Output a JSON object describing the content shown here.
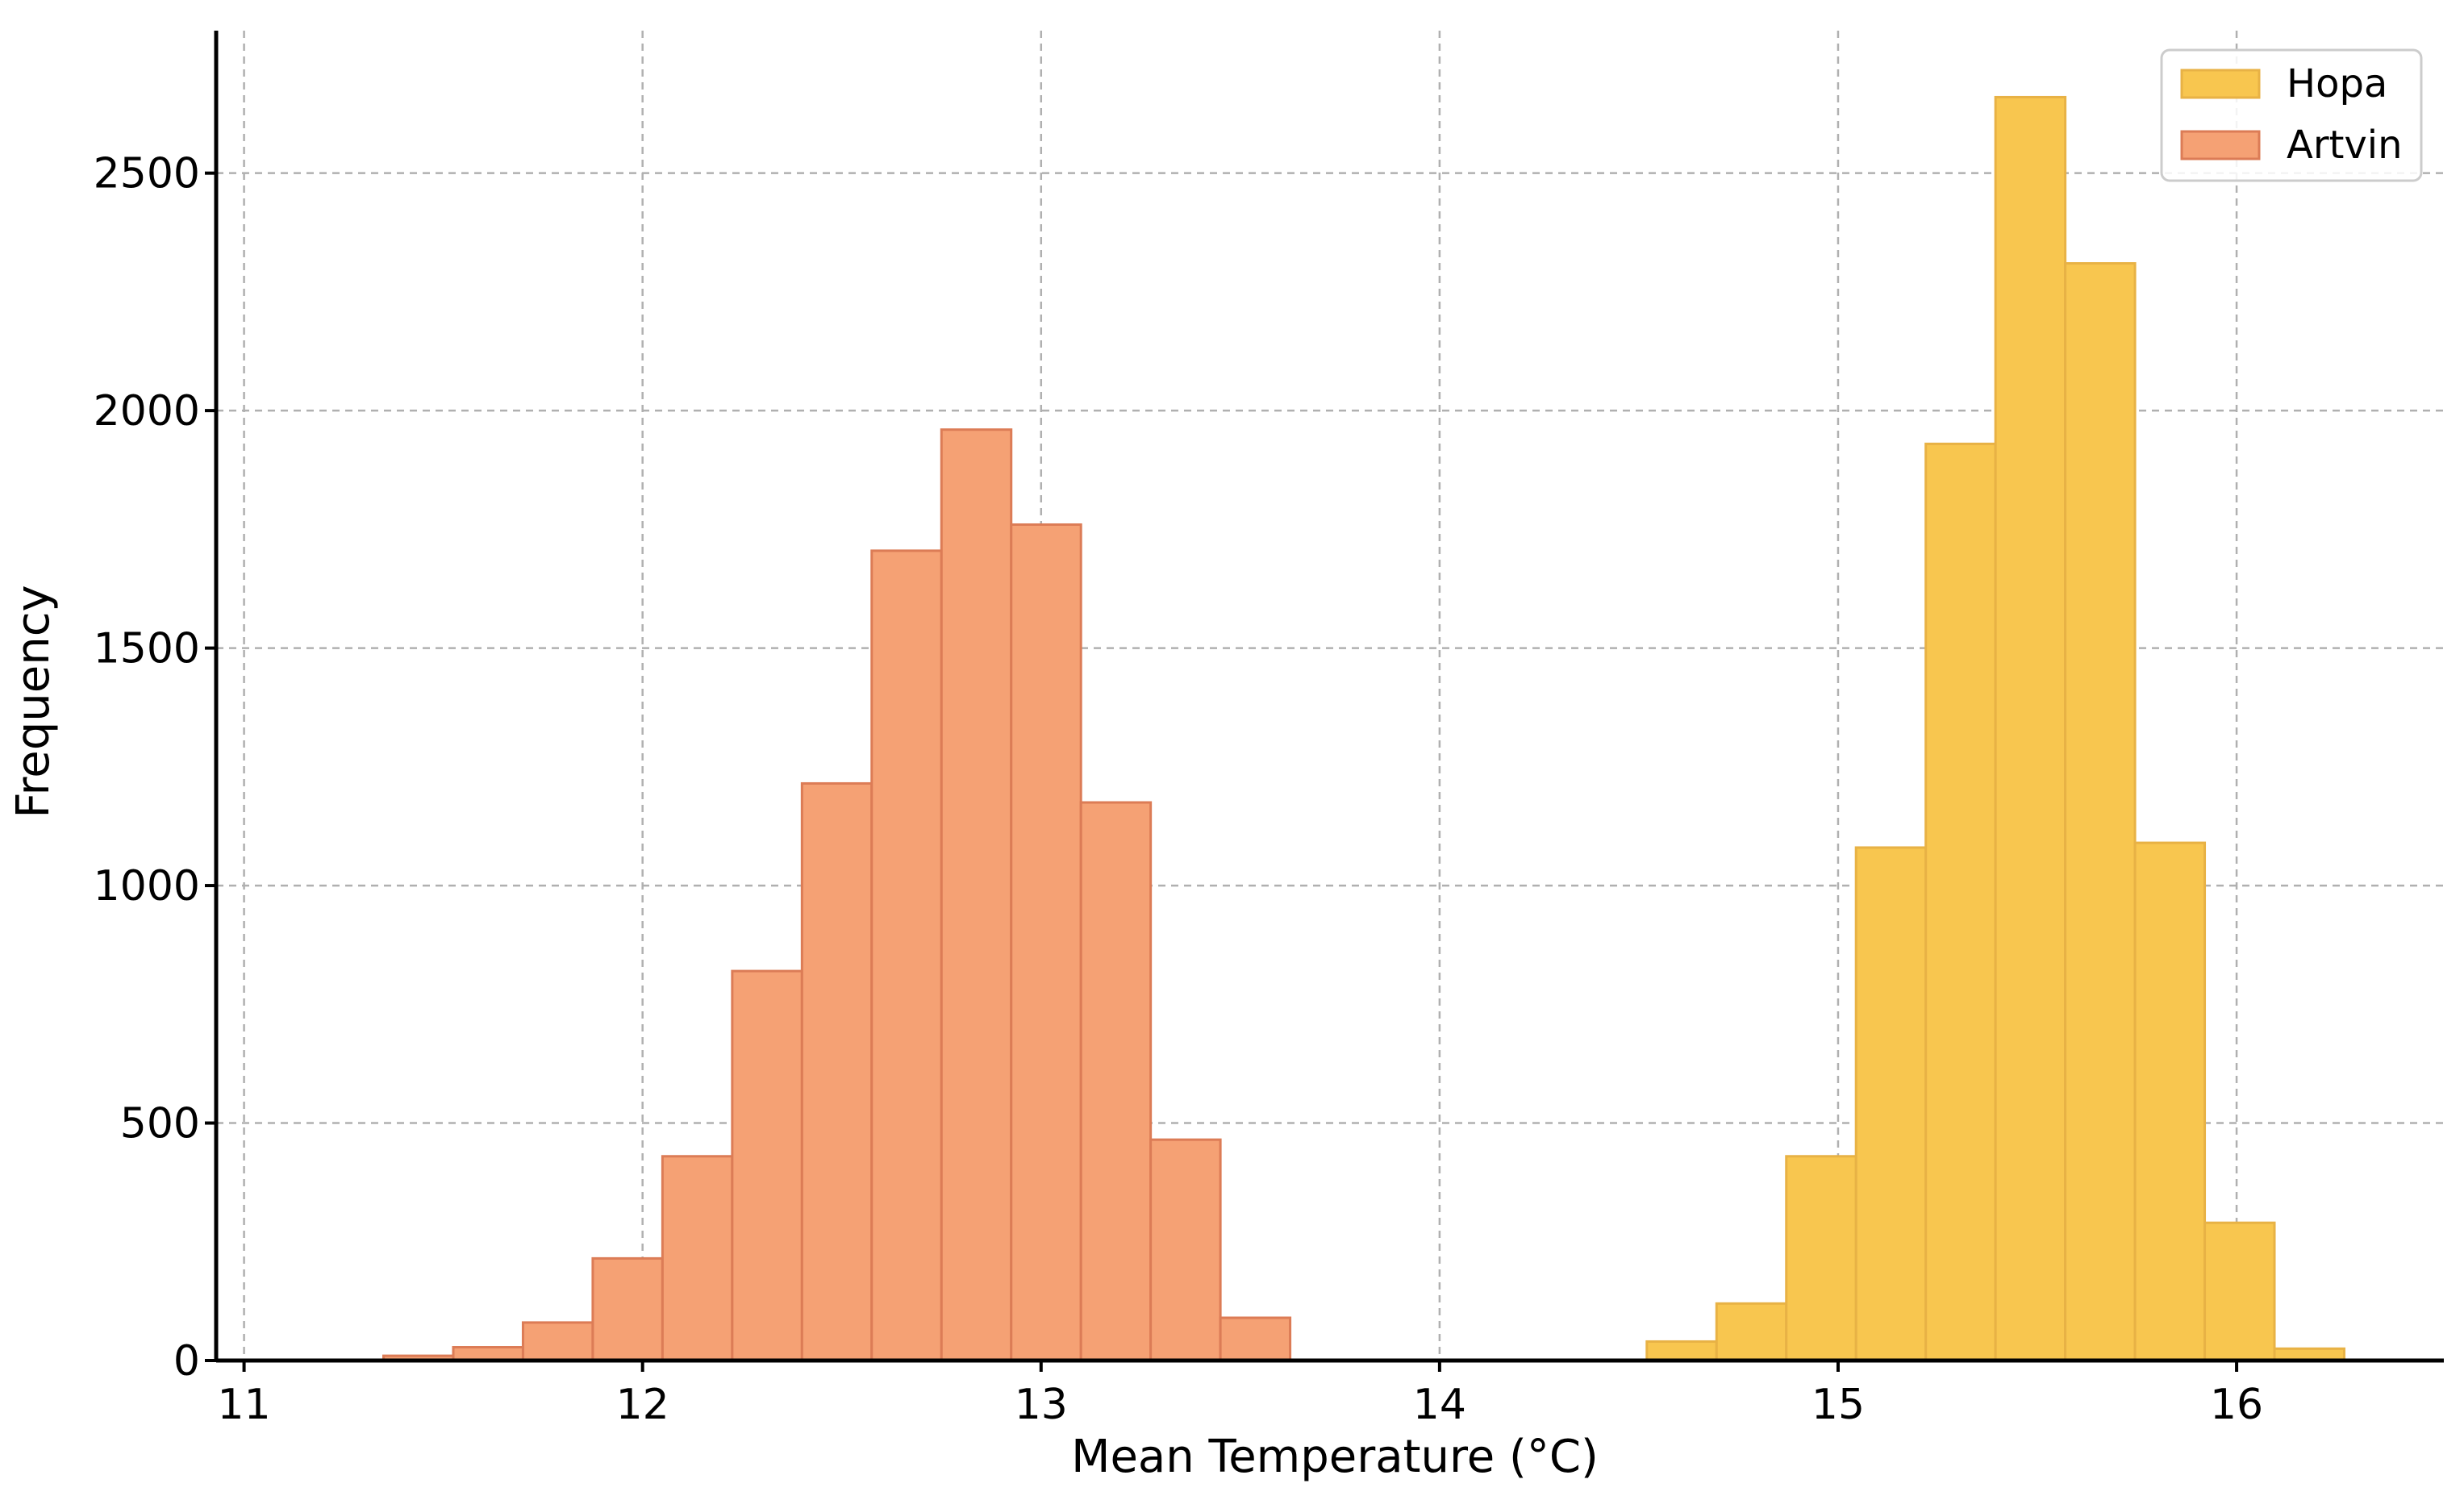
{
  "chart_data": {
    "type": "bar",
    "title": "",
    "xlabel": "Mean Temperature (°C)",
    "ylabel": "Frequency",
    "xlim": [
      10.93,
      16.52
    ],
    "ylim": [
      0,
      2800
    ],
    "xticks": [
      11,
      12,
      13,
      14,
      15,
      16
    ],
    "yticks": [
      0,
      500,
      1000,
      1500,
      2000,
      2500
    ],
    "grid": true,
    "legend_position": "top-right",
    "series": [
      {
        "name": "Hopa",
        "color": "#f8c64f",
        "edge_color": "#e8b245",
        "bin_edges": [
          14.52,
          14.695,
          14.87,
          15.045,
          15.22,
          15.395,
          15.57,
          15.745,
          15.92,
          16.095,
          16.27
        ],
        "values": [
          40,
          120,
          430,
          1080,
          1930,
          2660,
          2310,
          1090,
          290,
          25
        ]
      },
      {
        "name": "Artvin",
        "color": "#f5a174",
        "edge_color": "#dc7c56",
        "bin_edges": [
          11.35,
          11.525,
          11.7,
          11.875,
          12.05,
          12.225,
          12.4,
          12.575,
          12.75,
          12.925,
          13.1,
          13.275,
          13.45,
          13.625
        ],
        "values": [
          10,
          28,
          80,
          215,
          430,
          820,
          1215,
          1705,
          1960,
          1760,
          1175,
          465,
          90
        ]
      }
    ]
  }
}
